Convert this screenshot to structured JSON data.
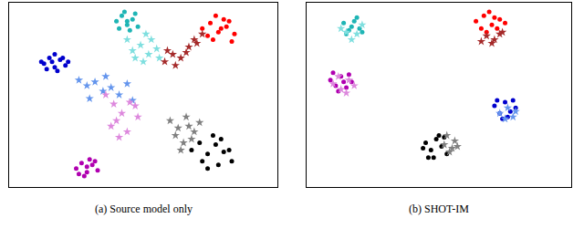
{
  "chart_data": [
    {
      "type": "scatter",
      "title": "(a) Source model only",
      "xlim": [
        0,
        100
      ],
      "ylim": [
        0,
        100
      ],
      "xticks": [],
      "yticks": [],
      "grid": false,
      "tick_labels": false,
      "series": [
        {
          "color": "#0000cd",
          "marker": "circle",
          "x": [
            13,
            15,
            17,
            19,
            21,
            14,
            18,
            20,
            16,
            22,
            12,
            17
          ],
          "y": [
            67,
            70,
            72,
            69,
            66,
            64,
            63,
            70,
            68,
            68,
            68,
            65
          ]
        },
        {
          "color": "#6495ed",
          "marker": "star",
          "x": [
            26,
            29,
            32,
            35,
            38,
            41,
            44,
            30,
            36,
            46
          ],
          "y": [
            58,
            55,
            57,
            52,
            54,
            50,
            56,
            48,
            60,
            47
          ]
        },
        {
          "color": "#1fb5b5",
          "marker": "circle",
          "x": [
            40,
            42,
            44,
            46,
            48,
            43,
            45,
            41,
            47,
            44
          ],
          "y": [
            90,
            93,
            88,
            91,
            87,
            95,
            85,
            86,
            94,
            90
          ]
        },
        {
          "color": "#7fdfdf",
          "marker": "star",
          "x": [
            46,
            49,
            52,
            55,
            50,
            53,
            47,
            56,
            51,
            44
          ],
          "y": [
            74,
            77,
            72,
            75,
            68,
            80,
            70,
            70,
            83,
            80
          ]
        },
        {
          "color": "#ff0000",
          "marker": "circle",
          "x": [
            72,
            75,
            78,
            81,
            84,
            76,
            80,
            83,
            74,
            79,
            77,
            82
          ],
          "y": [
            86,
            89,
            84,
            87,
            83,
            80,
            91,
            79,
            82,
            86,
            93,
            90
          ]
        },
        {
          "color": "#a52a2a",
          "marker": "star",
          "x": [
            58,
            61,
            64,
            67,
            70,
            62,
            66,
            69,
            59,
            72
          ],
          "y": [
            68,
            72,
            70,
            76,
            78,
            66,
            73,
            80,
            74,
            83
          ]
        },
        {
          "color": "#b000b0",
          "marker": "circle",
          "x": [
            25,
            27,
            29,
            31,
            33,
            28,
            30,
            26,
            32,
            29
          ],
          "y": [
            10,
            13,
            8,
            12,
            9,
            6,
            15,
            7,
            14,
            11
          ]
        },
        {
          "color": "#dd88dd",
          "marker": "star",
          "x": [
            36,
            39,
            42,
            45,
            48,
            38,
            44,
            41,
            47,
            40
          ],
          "y": [
            50,
            45,
            40,
            46,
            38,
            33,
            30,
            27,
            44,
            36
          ]
        },
        {
          "color": "#000000",
          "marker": "circle",
          "x": [
            68,
            71,
            74,
            77,
            80,
            83,
            72,
            76,
            79,
            82,
            74,
            78
          ],
          "y": [
            20,
            24,
            18,
            23,
            19,
            14,
            14,
            28,
            26,
            20,
            10,
            12
          ]
        },
        {
          "color": "#808080",
          "marker": "star",
          "x": [
            60,
            63,
            66,
            69,
            62,
            65,
            68,
            71,
            64,
            67
          ],
          "y": [
            36,
            32,
            38,
            30,
            28,
            24,
            26,
            35,
            20,
            33
          ]
        }
      ]
    },
    {
      "type": "scatter",
      "title": "(b) SHOT-IM",
      "xlim": [
        0,
        100
      ],
      "ylim": [
        0,
        100
      ],
      "xticks": [],
      "yticks": [],
      "grid": false,
      "tick_labels": false,
      "series": [
        {
          "color": "#1fb5b5",
          "marker": "circle",
          "x": [
            14,
            16,
            18,
            20,
            15,
            19,
            17,
            21
          ],
          "y": [
            89,
            85,
            90,
            86,
            83,
            92,
            87,
            84
          ]
        },
        {
          "color": "#7fdfdf",
          "marker": "star",
          "x": [
            13,
            17,
            21,
            15,
            19
          ],
          "y": [
            86,
            80,
            88,
            84,
            83
          ]
        },
        {
          "color": "#ff0000",
          "marker": "circle",
          "x": [
            64,
            67,
            70,
            73,
            66,
            72,
            69,
            75,
            68,
            71
          ],
          "y": [
            90,
            93,
            88,
            91,
            86,
            86,
            95,
            89,
            84,
            92
          ]
        },
        {
          "color": "#a52a2a",
          "marker": "star",
          "x": [
            68,
            71,
            74,
            70,
            73,
            66
          ],
          "y": [
            82,
            80,
            84,
            78,
            83,
            79
          ]
        },
        {
          "color": "#b000b0",
          "marker": "circle",
          "x": [
            9,
            11,
            13,
            15,
            17,
            12,
            16,
            14,
            10
          ],
          "y": [
            58,
            55,
            60,
            54,
            57,
            52,
            61,
            57,
            62
          ]
        },
        {
          "color": "#dd88dd",
          "marker": "star",
          "x": [
            10,
            13,
            16,
            12,
            15,
            18
          ],
          "y": [
            56,
            53,
            58,
            60,
            51,
            55
          ]
        },
        {
          "color": "#0000cd",
          "marker": "circle",
          "x": [
            71,
            73,
            75,
            77,
            79,
            74,
            76,
            72,
            78
          ],
          "y": [
            44,
            40,
            46,
            41,
            43,
            37,
            38,
            47,
            47
          ]
        },
        {
          "color": "#6495ed",
          "marker": "star",
          "x": [
            73,
            76,
            79,
            75,
            78
          ],
          "y": [
            40,
            43,
            41,
            37,
            38
          ]
        },
        {
          "color": "#000000",
          "marker": "circle",
          "x": [
            45,
            47,
            49,
            51,
            53,
            48,
            50,
            46,
            52,
            44
          ],
          "y": [
            24,
            20,
            26,
            22,
            18,
            16,
            28,
            16,
            27,
            21
          ]
        },
        {
          "color": "#808080",
          "marker": "star",
          "x": [
            52,
            54,
            56,
            53,
            55,
            57
          ],
          "y": [
            23,
            19,
            25,
            28,
            21,
            22
          ]
        }
      ]
    }
  ]
}
